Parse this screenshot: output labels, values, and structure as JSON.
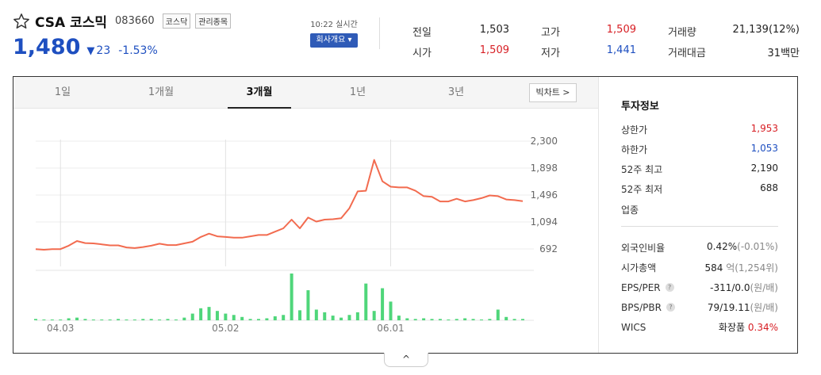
{
  "stock": {
    "name": "CSA 코스믹",
    "code": "083660",
    "tags": [
      "코스닥",
      "관리종목"
    ],
    "price": "1,480",
    "change": "23",
    "change_rate": "-1.53%",
    "realtime_label": "10:22 실시간",
    "info_button": "회사개요 ▾"
  },
  "stats": [
    {
      "label": "전일",
      "value": "1,503",
      "color": "normal"
    },
    {
      "label": "고가",
      "value": "1,509",
      "color": "red"
    },
    {
      "label": "거래량",
      "value": "21,139(12%)",
      "color": "normal"
    },
    {
      "label": "시가",
      "value": "1,509",
      "color": "red"
    },
    {
      "label": "저가",
      "value": "1,441",
      "color": "blue"
    },
    {
      "label": "거래대금",
      "value": "31백만",
      "color": "normal"
    }
  ],
  "tabs": [
    {
      "label": "1일",
      "active": false
    },
    {
      "label": "1개월",
      "active": false
    },
    {
      "label": "3개월",
      "active": true
    },
    {
      "label": "1년",
      "active": false
    },
    {
      "label": "3년",
      "active": false
    }
  ],
  "bigchart_label": "빅차트 >",
  "side": {
    "title": "투자정보",
    "rows1": [
      {
        "label": "상한가",
        "value": "1,953",
        "color": "red"
      },
      {
        "label": "하한가",
        "value": "1,053",
        "color": "blue"
      },
      {
        "label": "52주 최고",
        "value": "2,190",
        "color": "normal"
      },
      {
        "label": "52주 최저",
        "value": "688",
        "color": "normal"
      },
      {
        "label": "업종",
        "value": "",
        "color": "normal"
      }
    ],
    "rows2": [
      {
        "label": "외국인비율",
        "value": "0.42%",
        "extra": "(-0.01%)",
        "help": false
      },
      {
        "label": "시가총액",
        "value": "584",
        "extra": "억(1,254위)",
        "help": false
      },
      {
        "label": "EPS/PER",
        "value": "-311/0.0",
        "extra": "(원/배)",
        "help": true
      },
      {
        "label": "BPS/PBR",
        "value": "79/19.11",
        "extra": "(원/배)",
        "help": true
      },
      {
        "label": "WICS",
        "value": "화장품",
        "extra": "0.34%",
        "help": false
      }
    ]
  },
  "toggle_label": "^",
  "colors": {
    "line": "#f26b4f",
    "volume": "#4fd67a",
    "up": "#d71d23",
    "down": "#1e4fc0"
  },
  "chart_data": {
    "type": "line",
    "title": "",
    "x_tick_labels": [
      "04.03",
      "05.02",
      "06.01"
    ],
    "y_ticks": [
      2300,
      1898,
      1496,
      1094,
      692
    ],
    "ylim": [
      692,
      2300
    ],
    "prices": [
      690,
      680,
      690,
      690,
      740,
      810,
      780,
      775,
      760,
      745,
      745,
      715,
      705,
      720,
      740,
      770,
      750,
      750,
      775,
      800,
      870,
      920,
      880,
      870,
      860,
      860,
      880,
      900,
      900,
      950,
      1000,
      1130,
      1000,
      1160,
      1100,
      1130,
      1135,
      1150,
      1300,
      1550,
      1560,
      2020,
      1700,
      1620,
      1610,
      1610,
      1560,
      1480,
      1470,
      1400,
      1400,
      1440,
      1400,
      1420,
      1450,
      1490,
      1480,
      1430,
      1420,
      1405
    ],
    "volumes": [
      2,
      1,
      1,
      1,
      3,
      4,
      2,
      1,
      1,
      1,
      2,
      1,
      1,
      2,
      2,
      1,
      2,
      1,
      4,
      10,
      18,
      20,
      14,
      10,
      8,
      5,
      2,
      2,
      3,
      6,
      8,
      70,
      15,
      45,
      16,
      12,
      7,
      4,
      8,
      12,
      55,
      14,
      48,
      28,
      7,
      3,
      2,
      3,
      2,
      2,
      1,
      2,
      3,
      2,
      1,
      2,
      16,
      5,
      2,
      2
    ]
  }
}
